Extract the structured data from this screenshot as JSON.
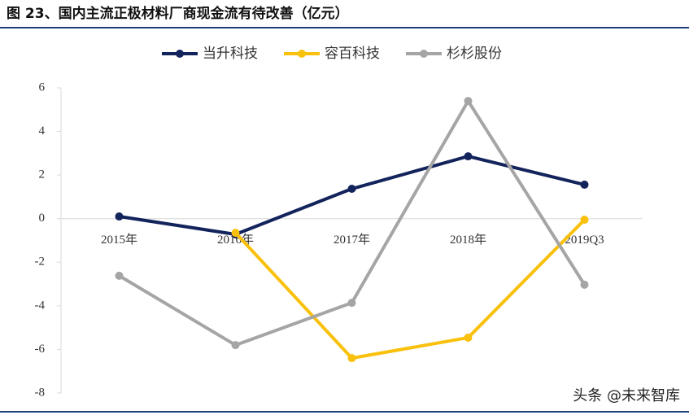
{
  "chart_data": {
    "type": "line",
    "title": "图 23、国内主流正极材料厂商现金流有待改善（亿元）",
    "categories": [
      "2015年",
      "2016年",
      "2017年",
      "2018年",
      "2019Q3"
    ],
    "series": [
      {
        "name": "当升科技",
        "color": "#13235b",
        "values": [
          0.1,
          -0.72,
          1.37,
          2.86,
          1.56
        ]
      },
      {
        "name": "容百科技",
        "color": "#f9c00c",
        "values": [
          null,
          -0.65,
          -6.4,
          -5.46,
          -0.05
        ]
      },
      {
        "name": "杉杉股份",
        "color": "#a5a5a5",
        "values": [
          -2.62,
          -5.8,
          -3.86,
          5.4,
          -3.03
        ]
      }
    ],
    "ylim": [
      -8,
      6
    ],
    "yticks": [
      -8,
      -6,
      -4,
      -2,
      0,
      2,
      4,
      6
    ],
    "legend": "top",
    "watermark": "头条 @未来智库"
  }
}
